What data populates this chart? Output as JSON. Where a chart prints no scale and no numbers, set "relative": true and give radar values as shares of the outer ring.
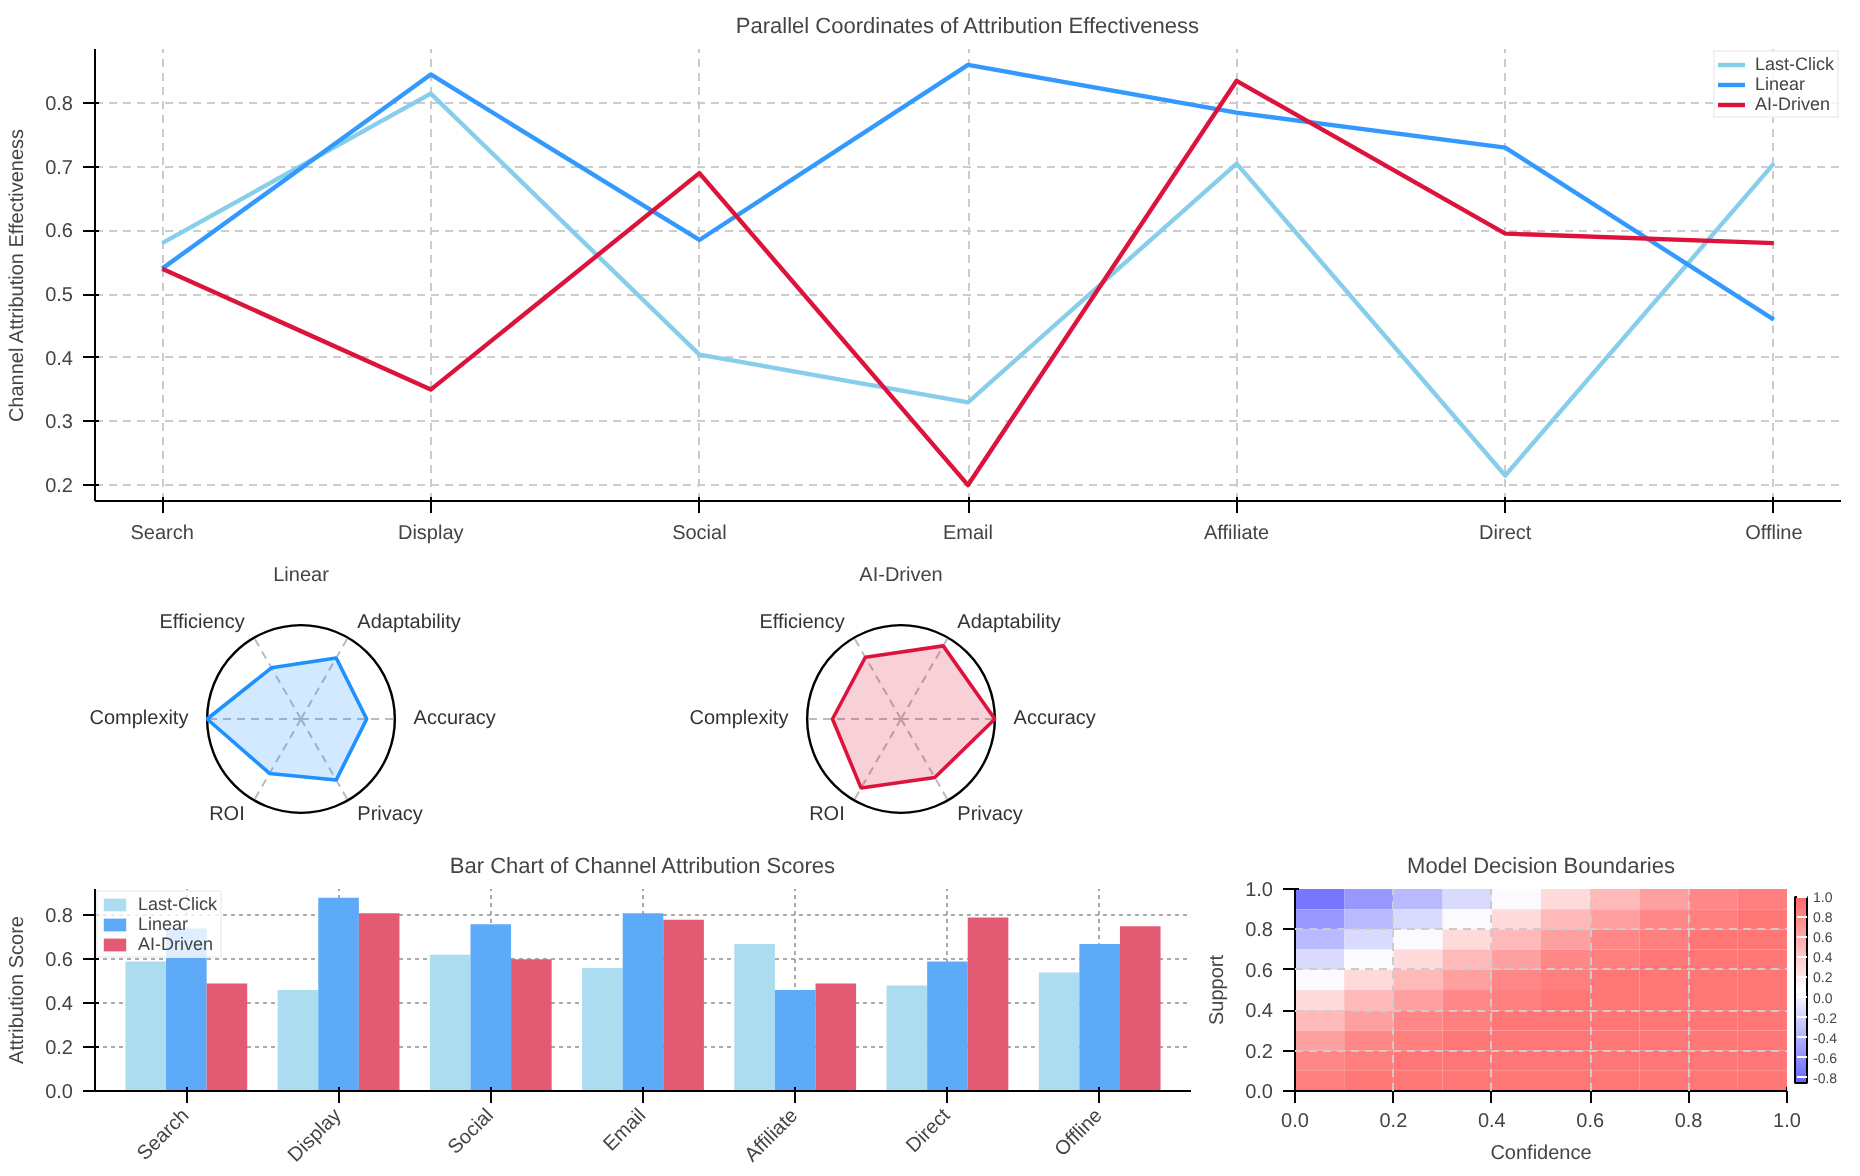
{
  "chart_data": [
    {
      "type": "line",
      "title": "Parallel Coordinates of Attribution Effectiveness",
      "ylabel": "Channel Attribution Effectiveness",
      "categories": [
        "Search",
        "Display",
        "Social",
        "Email",
        "Affiliate",
        "Direct",
        "Offline"
      ],
      "series": [
        {
          "name": "Last-Click",
          "color": "#87ceeb",
          "values": [
            0.58,
            0.815,
            0.405,
            0.33,
            0.705,
            0.215,
            0.705
          ]
        },
        {
          "name": "Linear",
          "color": "#3399ff",
          "values": [
            0.54,
            0.845,
            0.585,
            0.86,
            0.785,
            0.73,
            0.46
          ]
        },
        {
          "name": "AI-Driven",
          "color": "#dc143c",
          "values": [
            0.54,
            0.35,
            0.69,
            0.2,
            0.835,
            0.595,
            0.58
          ]
        }
      ],
      "ylim": [
        0.175,
        0.885
      ],
      "yticks": [
        0.2,
        0.3,
        0.4,
        0.5,
        0.6,
        0.7,
        0.8
      ],
      "grid": true,
      "legend": "top right",
      "line_style": "solid",
      "marker": "none"
    },
    {
      "type": "radar",
      "title": "Linear",
      "relative": true,
      "categories": [
        "Adaptability",
        "Accuracy",
        "Privacy",
        "ROI",
        "Complexity",
        "Efficiency"
      ],
      "series": [
        {
          "color": "#1e90ff",
          "values": [
            0.75,
            0.7,
            0.75,
            0.67,
            1.0,
            0.63
          ]
        }
      ]
    },
    {
      "type": "radar",
      "title": "AI-Driven",
      "relative": true,
      "categories": [
        "Adaptability",
        "Accuracy",
        "Privacy",
        "ROI",
        "Complexity",
        "Efficiency"
      ],
      "series": [
        {
          "color": "#dc143c",
          "values": [
            0.9,
            1.0,
            0.72,
            0.85,
            0.73,
            0.76
          ]
        }
      ]
    },
    {
      "type": "bar",
      "title": "Bar Chart of Channel Attribution Scores",
      "ylabel": "Attribution Score",
      "categories": [
        "Search",
        "Display",
        "Social",
        "Email",
        "Affiliate",
        "Direct",
        "Offline"
      ],
      "series": [
        {
          "name": "Last-Click",
          "color": "#acdcf0",
          "values": [
            0.59,
            0.46,
            0.62,
            0.56,
            0.67,
            0.48,
            0.54
          ]
        },
        {
          "name": "Linear",
          "color": "#5daaf8",
          "values": [
            0.74,
            0.88,
            0.76,
            0.81,
            0.46,
            0.59,
            0.67
          ]
        },
        {
          "name": "AI-Driven",
          "color": "#e35a73",
          "values": [
            0.49,
            0.81,
            0.6,
            0.78,
            0.49,
            0.79,
            0.75
          ]
        }
      ],
      "ylim": [
        0,
        0.92
      ],
      "yticks": [
        {
          "value": 0,
          "label": "0.0"
        },
        {
          "value": 0.2,
          "label": "0.2"
        },
        {
          "value": 0.4,
          "label": "0.4"
        },
        {
          "value": 0.6,
          "label": "0.6"
        },
        {
          "value": 0.8,
          "label": "0.8"
        }
      ],
      "grid": true,
      "legend": "top left"
    },
    {
      "type": "heatmap",
      "title": "Model Decision Boundaries",
      "xlabel": "Confidence",
      "ylabel": "Support",
      "cells": [
        [
          -0.75,
          -0.55,
          -0.35,
          -0.15,
          0.05,
          0.3,
          0.5,
          0.65,
          0.8,
          0.85
        ],
        [
          -0.55,
          -0.35,
          -0.15,
          0.05,
          0.3,
          0.5,
          0.65,
          0.8,
          0.85,
          0.9
        ],
        [
          -0.35,
          -0.15,
          0.05,
          0.3,
          0.5,
          0.65,
          0.8,
          0.85,
          0.9,
          0.9
        ],
        [
          -0.15,
          0.05,
          0.3,
          0.5,
          0.65,
          0.8,
          0.85,
          0.9,
          0.9,
          0.9
        ],
        [
          0.05,
          0.3,
          0.5,
          0.65,
          0.8,
          0.85,
          0.9,
          0.9,
          0.9,
          0.9
        ],
        [
          0.3,
          0.5,
          0.65,
          0.8,
          0.85,
          0.9,
          0.9,
          0.9,
          0.9,
          0.9
        ],
        [
          0.5,
          0.65,
          0.8,
          0.85,
          0.9,
          0.9,
          0.9,
          0.9,
          0.9,
          0.9
        ],
        [
          0.65,
          0.8,
          0.85,
          0.9,
          0.9,
          0.9,
          0.9,
          0.9,
          0.9,
          0.9
        ],
        [
          0.8,
          0.85,
          0.9,
          0.9,
          0.9,
          0.9,
          0.9,
          0.9,
          0.9,
          0.9
        ],
        [
          0.85,
          0.9,
          0.9,
          0.9,
          0.9,
          0.9,
          0.9,
          0.9,
          0.9,
          0.9
        ]
      ],
      "xlim": [
        0,
        1
      ],
      "ylim": [
        0,
        1
      ],
      "xticks": [
        {
          "value": 0,
          "label": "0.0"
        },
        0.2,
        0.4,
        0.6,
        0.8,
        {
          "value": 1,
          "label": "1.0"
        }
      ],
      "yticks": [
        {
          "value": 0,
          "label": "0.0"
        },
        0.2,
        0.4,
        0.6,
        0.8,
        {
          "value": 1,
          "label": "1.0"
        }
      ],
      "clim": [
        -0.85,
        1.0
      ],
      "cticks": [
        -0.8,
        -0.6,
        -0.4,
        -0.2,
        {
          "value": 0,
          "label": "0.0"
        },
        0.2,
        0.4,
        0.6,
        0.8,
        {
          "value": 1,
          "label": "1.0"
        }
      ],
      "grid": true
    }
  ]
}
